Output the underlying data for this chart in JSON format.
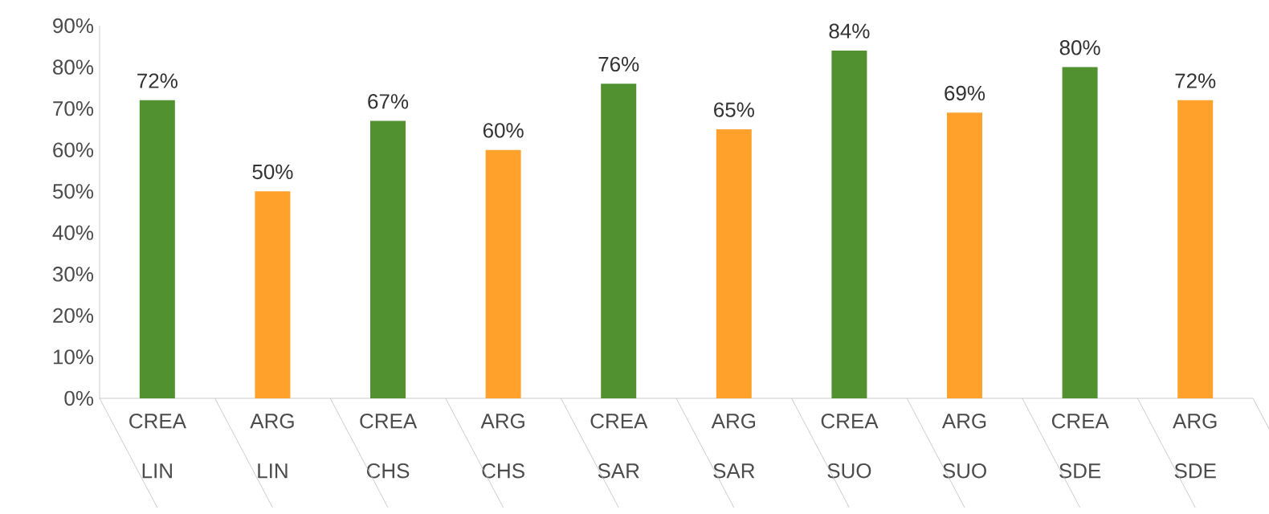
{
  "chart_data": {
    "type": "bar",
    "categories": [
      "CREA LIN",
      "ARG LIN",
      "CREA CHS",
      "ARG CHS",
      "CREA SAR",
      "ARG SAR",
      "CREA SUO",
      "ARG SUO",
      "CREA SDE",
      "ARG SDE"
    ],
    "values": [
      72,
      50,
      67,
      60,
      76,
      65,
      84,
      69,
      80,
      72
    ],
    "colors": [
      "#519130",
      "#ffa12a",
      "#519130",
      "#ffa12a",
      "#519130",
      "#ffa12a",
      "#519130",
      "#ffa12a",
      "#519130",
      "#ffa12a"
    ],
    "value_labels": [
      "72%",
      "50%",
      "67%",
      "60%",
      "76%",
      "65%",
      "84%",
      "69%",
      "80%",
      "72%"
    ],
    "ylim": [
      0,
      90
    ],
    "yticks": [
      {
        "value": 0,
        "label": "0%"
      },
      {
        "value": 10,
        "label": "10%"
      },
      {
        "value": 20,
        "label": "20%"
      },
      {
        "value": 30,
        "label": "30%"
      },
      {
        "value": 40,
        "label": "40%"
      },
      {
        "value": 50,
        "label": "50%"
      },
      {
        "value": 60,
        "label": "60%"
      },
      {
        "value": 70,
        "label": "70%"
      },
      {
        "value": 80,
        "label": "80%"
      },
      {
        "value": 90,
        "label": "90%"
      }
    ],
    "grid": false
  }
}
